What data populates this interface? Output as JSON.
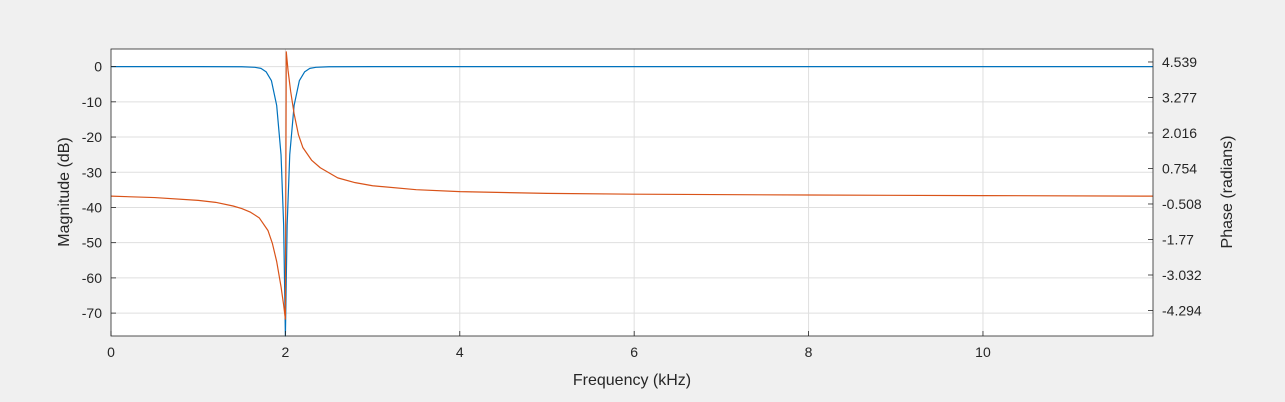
{
  "chart_data": {
    "type": "line",
    "xlabel": "Frequency (kHz)",
    "ylabel_left": "Magnitude (dB)",
    "ylabel_right": "Phase (radians)",
    "xlim": [
      0,
      11.95
    ],
    "ylim_left": [
      -76.5,
      5
    ],
    "ylim_right": [
      -5.2,
      5.0
    ],
    "grid": true,
    "x_ticks": [
      0,
      2,
      4,
      6,
      8,
      10
    ],
    "x_tick_labels": [
      "0",
      "2",
      "4",
      "6",
      "8",
      "10"
    ],
    "y_left_ticks": [
      0,
      -10,
      -20,
      -30,
      -40,
      -50,
      -60,
      -70
    ],
    "y_left_tick_labels": [
      "0",
      "-10",
      "-20",
      "-30",
      "-40",
      "-50",
      "-60",
      "-70"
    ],
    "y_right_ticks": [
      4.539,
      3.277,
      2.016,
      0.754,
      -0.508,
      -1.77,
      -3.032,
      -4.294
    ],
    "y_right_tick_labels": [
      "4.539",
      "3.277",
      "2.016",
      "0.754",
      "-0.508",
      "-1.77",
      "-3.032",
      "-4.294"
    ],
    "series": [
      {
        "axis": "left",
        "color": "#0072bd",
        "x": [
          0,
          1.0,
          1.5,
          1.65,
          1.72,
          1.78,
          1.84,
          1.9,
          1.95,
          1.98,
          2.0,
          2.02,
          2.05,
          2.1,
          2.16,
          2.22,
          2.28,
          2.35,
          2.5,
          3.0,
          6.0,
          11.95
        ],
        "y": [
          0,
          0,
          -0.05,
          -0.2,
          -0.5,
          -1.5,
          -4,
          -11,
          -25,
          -45,
          -76.5,
          -45,
          -25,
          -11,
          -4,
          -1.5,
          -0.5,
          -0.2,
          -0.05,
          0,
          0,
          0
        ]
      },
      {
        "axis": "right",
        "color": "#d95319",
        "x": [
          0,
          0.5,
          1.0,
          1.2,
          1.4,
          1.5,
          1.6,
          1.7,
          1.8,
          1.85,
          1.9,
          1.95,
          1.98,
          2.0,
          2.01,
          2.03,
          2.06,
          2.1,
          2.15,
          2.2,
          2.3,
          2.4,
          2.6,
          2.8,
          3.0,
          3.5,
          4.0,
          5.0,
          6.0,
          8.0,
          10.0,
          11.95
        ],
        "y": [
          -0.23,
          -0.28,
          -0.38,
          -0.45,
          -0.58,
          -0.67,
          -0.8,
          -1.0,
          -1.45,
          -1.9,
          -2.55,
          -3.45,
          -4.1,
          -4.6,
          4.9,
          4.25,
          3.5,
          2.7,
          1.95,
          1.5,
          1.05,
          0.78,
          0.42,
          0.25,
          0.14,
          0.0,
          -0.07,
          -0.13,
          -0.16,
          -0.19,
          -0.21,
          -0.23
        ]
      }
    ]
  }
}
